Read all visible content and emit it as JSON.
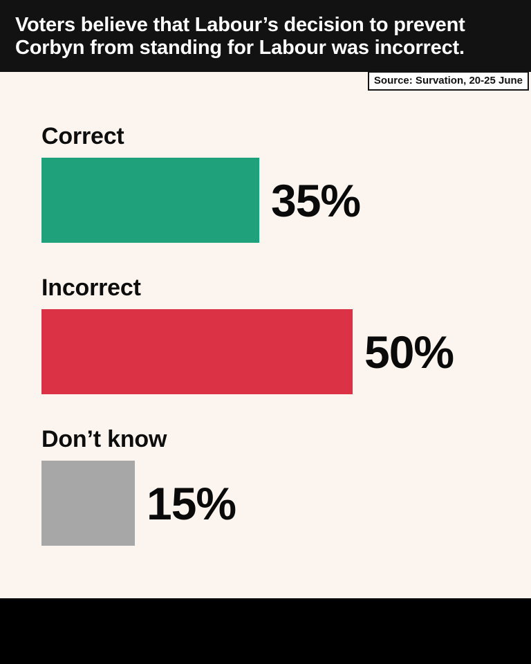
{
  "header": {
    "title_line1": "Voters believe that Labour’s decision to prevent",
    "title_line2": "Corbyn from standing for Labour was incorrect.",
    "source": "Source: Survation, 20-25 June"
  },
  "colors": {
    "background": "#FCF5EF",
    "header_bg": "#121212",
    "footer_bg": "#000000",
    "title_text": "#FFFFFF",
    "label_text": "#0D0D0D"
  },
  "chart_data": {
    "type": "bar",
    "orientation": "horizontal",
    "title": "Voters believe that Labour’s decision to prevent Corbyn from standing for Labour was incorrect.",
    "source": "Source: Survation, 20-25 June",
    "categories": [
      "Correct",
      "Incorrect",
      "Don’t know"
    ],
    "values": [
      35,
      50,
      15
    ],
    "value_labels": [
      "35%",
      "50%",
      "15%"
    ],
    "unit": "%",
    "colors": [
      "#1FA17B",
      "#DC3245",
      "#A7A7A7"
    ],
    "xlim": [
      0,
      100
    ],
    "grid": false,
    "legend": false,
    "value_label_position": "right-of-bar"
  }
}
